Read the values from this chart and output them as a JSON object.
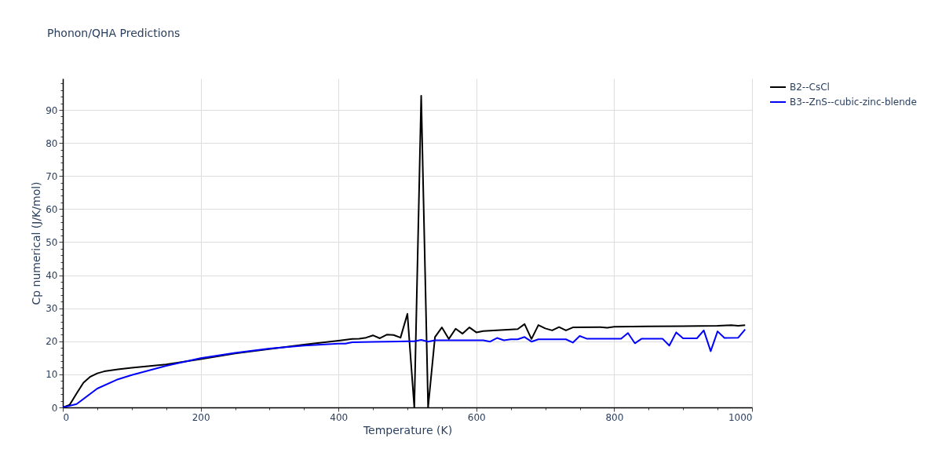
{
  "chart_data": {
    "type": "line",
    "title": "Phonon/QHA Predictions",
    "xlabel": "Temperature (K)",
    "ylabel": "Cp numerical (J/K/mol)",
    "xlim": [
      0,
      1000
    ],
    "ylim": [
      0,
      99.5
    ],
    "xticks": [
      0,
      {
        "value": 50,
        "label": null
      },
      {
        "value": 100,
        "label": null
      },
      {
        "value": 150,
        "label": null
      },
      200,
      {
        "value": 250,
        "label": null
      },
      {
        "value": 300,
        "label": null
      },
      {
        "value": 350,
        "label": null
      },
      400,
      {
        "value": 450,
        "label": null
      },
      {
        "value": 500,
        "label": null
      },
      {
        "value": 550,
        "label": null
      },
      600,
      {
        "value": 650,
        "label": null
      },
      {
        "value": 700,
        "label": null
      },
      {
        "value": 750,
        "label": null
      },
      800,
      {
        "value": 850,
        "label": null
      },
      {
        "value": 900,
        "label": null
      },
      {
        "value": 950,
        "label": null
      },
      1000
    ],
    "yticks": [
      0,
      {
        "value": 2,
        "label": null
      },
      {
        "value": 4,
        "label": null
      },
      {
        "value": 6,
        "label": null
      },
      {
        "value": 8,
        "label": null
      },
      10,
      {
        "value": 12,
        "label": null
      },
      {
        "value": 14,
        "label": null
      },
      {
        "value": 16,
        "label": null
      },
      {
        "value": 18,
        "label": null
      },
      20,
      {
        "value": 22,
        "label": null
      },
      {
        "value": 24,
        "label": null
      },
      {
        "value": 26,
        "label": null
      },
      {
        "value": 28,
        "label": null
      },
      30,
      {
        "value": 32,
        "label": null
      },
      {
        "value": 34,
        "label": null
      },
      {
        "value": 36,
        "label": null
      },
      {
        "value": 38,
        "label": null
      },
      40,
      {
        "value": 42,
        "label": null
      },
      {
        "value": 44,
        "label": null
      },
      {
        "value": 46,
        "label": null
      },
      {
        "value": 48,
        "label": null
      },
      50,
      {
        "value": 52,
        "label": null
      },
      {
        "value": 54,
        "label": null
      },
      {
        "value": 56,
        "label": null
      },
      {
        "value": 58,
        "label": null
      },
      60,
      {
        "value": 62,
        "label": null
      },
      {
        "value": 64,
        "label": null
      },
      {
        "value": 66,
        "label": null
      },
      {
        "value": 68,
        "label": null
      },
      70,
      {
        "value": 72,
        "label": null
      },
      {
        "value": 74,
        "label": null
      },
      {
        "value": 76,
        "label": null
      },
      {
        "value": 78,
        "label": null
      },
      80,
      {
        "value": 82,
        "label": null
      },
      {
        "value": 84,
        "label": null
      },
      {
        "value": 86,
        "label": null
      },
      {
        "value": 88,
        "label": null
      },
      90,
      {
        "value": 92,
        "label": null
      },
      {
        "value": 94,
        "label": null
      },
      {
        "value": 96,
        "label": null
      },
      {
        "value": 98,
        "label": null
      }
    ],
    "grid": true,
    "legend": "top right",
    "series": [
      {
        "name": "B2--CsCl",
        "color": "#000000",
        "x": [
          0,
          10,
          20,
          30,
          40,
          50,
          60,
          80,
          100,
          150,
          200,
          250,
          350,
          400,
          420,
          430,
          440,
          450,
          460,
          470,
          480,
          490,
          500,
          510,
          520,
          530,
          540,
          550,
          560,
          570,
          580,
          590,
          600,
          610,
          660,
          670,
          680,
          690,
          700,
          710,
          720,
          730,
          740,
          780,
          790,
          800,
          850,
          900,
          950,
          970,
          980,
          990
        ],
        "values": [
          0,
          0.8,
          4.2,
          7.5,
          9.3,
          10.3,
          10.9,
          11.5,
          12.0,
          13.0,
          14.6,
          16.3,
          19.0,
          20.2,
          20.7,
          20.8,
          21.1,
          21.8,
          20.9,
          22.0,
          21.9,
          21.1,
          28.3,
          0,
          94.3,
          0,
          21.3,
          24.2,
          20.7,
          23.8,
          22.3,
          24.2,
          22.7,
          23.1,
          23.7,
          25.2,
          20.7,
          24.9,
          23.9,
          23.3,
          24.3,
          23.3,
          24.2,
          24.3,
          24.1,
          24.4,
          24.5,
          24.6,
          24.7,
          24.9,
          24.7,
          24.9
        ]
      },
      {
        "name": "B3--ZnS--cubic-zinc-blende",
        "color": "#0000ff",
        "x": [
          0,
          20,
          50,
          80,
          100,
          150,
          200,
          250,
          300,
          350,
          400,
          410,
          420,
          450,
          500,
          510,
          520,
          530,
          540,
          600,
          610,
          620,
          630,
          640,
          650,
          660,
          670,
          680,
          690,
          730,
          740,
          750,
          760,
          810,
          820,
          830,
          840,
          870,
          880,
          890,
          900,
          920,
          930,
          940,
          950,
          960,
          980,
          990
        ],
        "values": [
          0,
          1.0,
          5.7,
          8.5,
          9.8,
          12.6,
          14.9,
          16.5,
          17.8,
          18.7,
          19.3,
          19.3,
          19.7,
          19.8,
          20.0,
          20.0,
          20.4,
          19.9,
          20.3,
          20.3,
          20.3,
          19.9,
          21.0,
          20.3,
          20.6,
          20.6,
          21.3,
          19.9,
          20.6,
          20.6,
          19.6,
          21.6,
          20.8,
          20.8,
          22.5,
          19.4,
          20.8,
          20.8,
          18.7,
          22.7,
          20.9,
          20.9,
          23.3,
          17.0,
          23.0,
          21.0,
          21.1,
          23.6
        ]
      }
    ]
  }
}
